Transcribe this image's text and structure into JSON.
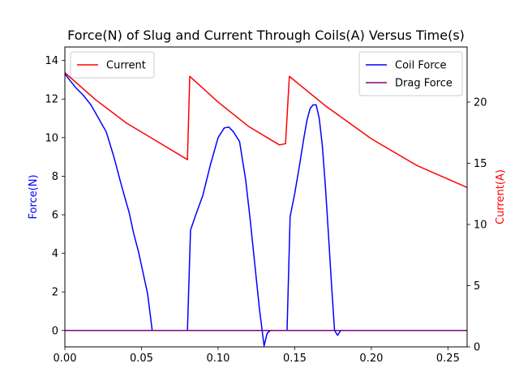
{
  "chart_data": {
    "type": "line",
    "title": "Force(N) of Slug and Current Through Coils(A) Versus Time(s)",
    "xlabel": "",
    "ylabel_left": "Force(N)",
    "ylabel_right": "Current(A)",
    "xlim": [
      0.0,
      0.2625
    ],
    "ylim_left": [
      -0.85,
      14.7
    ],
    "ylim_right": [
      0.0,
      24.5
    ],
    "x_ticks": [
      "0.00",
      "0.05",
      "0.10",
      "0.15",
      "0.20",
      "0.25"
    ],
    "x_tick_values": [
      0.0,
      0.05,
      0.1,
      0.15,
      0.2,
      0.25
    ],
    "y_left_ticks": [
      "0",
      "2",
      "4",
      "6",
      "8",
      "10",
      "12",
      "14"
    ],
    "y_left_tick_values": [
      0,
      2,
      4,
      6,
      8,
      10,
      12,
      14
    ],
    "y_right_ticks": [
      "0",
      "5",
      "10",
      "15",
      "20"
    ],
    "y_right_tick_values": [
      0,
      5,
      10,
      15,
      20
    ],
    "grid": false,
    "legend_left_placement": "upper-left",
    "legend_right_placement": "upper-right",
    "series": [
      {
        "name": "Coil Force",
        "axis": "left",
        "color": "#0000ff",
        "x": [
          0.0,
          0.003,
          0.007,
          0.012,
          0.017,
          0.022,
          0.027,
          0.032,
          0.037,
          0.042,
          0.045,
          0.048,
          0.051,
          0.054,
          0.057,
          0.08,
          0.082,
          0.085,
          0.09,
          0.095,
          0.1,
          0.104,
          0.107,
          0.11,
          0.114,
          0.118,
          0.121,
          0.124,
          0.127,
          0.13,
          0.132,
          0.134,
          0.145,
          0.147,
          0.15,
          0.153,
          0.156,
          0.158,
          0.16,
          0.162,
          0.164,
          0.166,
          0.168,
          0.17,
          0.172,
          0.174,
          0.176,
          0.178,
          0.18,
          0.181,
          0.263
        ],
        "y": [
          13.3,
          13.0,
          12.6,
          12.2,
          11.7,
          11.0,
          10.3,
          9.0,
          7.5,
          6.1,
          5.0,
          4.1,
          3.0,
          1.9,
          0.0,
          0.0,
          5.2,
          5.9,
          7.0,
          8.6,
          10.0,
          10.5,
          10.55,
          10.3,
          9.8,
          7.8,
          5.7,
          3.4,
          1.1,
          -0.8,
          -0.15,
          0.0,
          0.0,
          5.9,
          7.1,
          8.5,
          10.0,
          10.9,
          11.5,
          11.7,
          11.7,
          11.0,
          9.6,
          7.5,
          5.0,
          2.4,
          0.0,
          -0.25,
          0.0,
          0.0,
          0.0
        ]
      },
      {
        "name": "Drag Force",
        "axis": "left",
        "color": "#800080",
        "x": [
          0.0,
          0.263
        ],
        "y": [
          0.0,
          0.0
        ]
      },
      {
        "name": "Current",
        "axis": "right",
        "color": "#ff0000",
        "x": [
          0.0,
          0.02,
          0.04,
          0.06,
          0.08,
          0.0815,
          0.1,
          0.12,
          0.14,
          0.144,
          0.1465,
          0.17,
          0.2,
          0.23,
          0.263
        ],
        "y": [
          22.4,
          20.2,
          18.3,
          16.8,
          15.3,
          22.1,
          20.0,
          18.0,
          16.5,
          16.6,
          22.1,
          19.7,
          17.0,
          14.8,
          13.0
        ]
      }
    ]
  }
}
